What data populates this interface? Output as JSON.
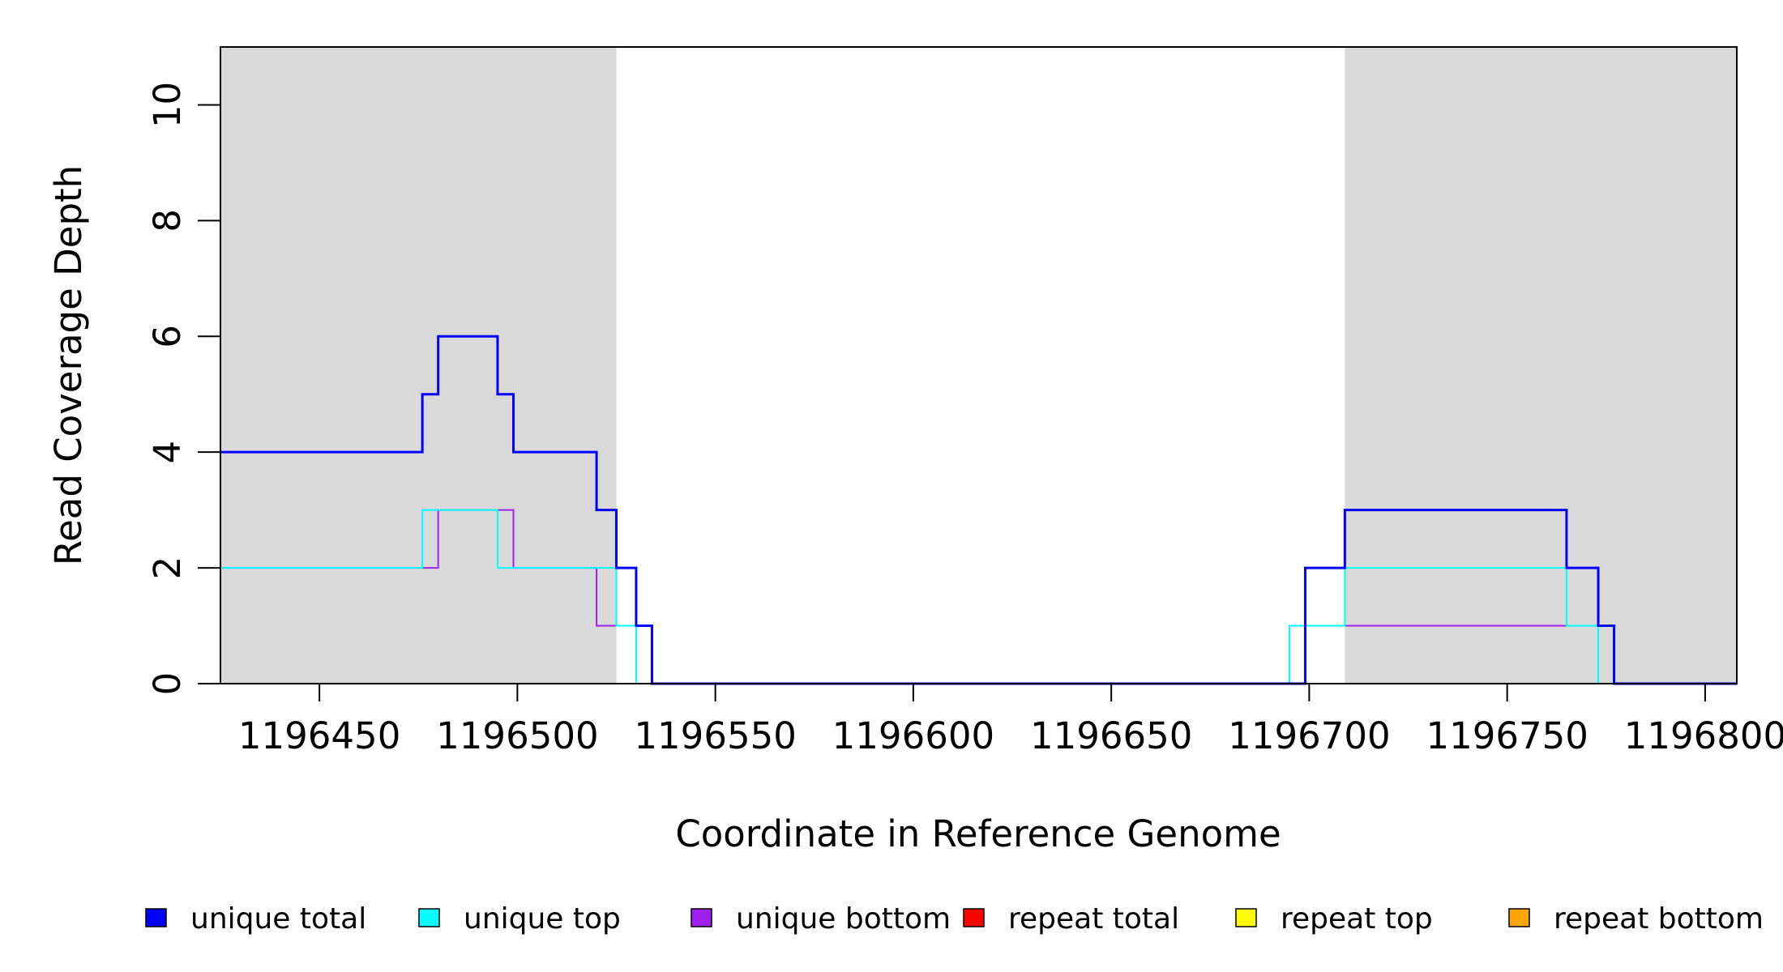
{
  "chart_data": {
    "type": "line",
    "step": true,
    "title": "",
    "xlabel": "Coordinate in Reference Genome",
    "ylabel": "Read Coverage Depth",
    "xlim": [
      1196425,
      1196808
    ],
    "ylim": [
      0,
      11
    ],
    "xticks": [
      1196450,
      1196500,
      1196550,
      1196600,
      1196650,
      1196700,
      1196750,
      1196800
    ],
    "xtick_labels": [
      "1196450",
      "1196500",
      "1196550",
      "1196600",
      "1196650",
      "1196700",
      "1196750",
      "1196800"
    ],
    "yticks": [
      0,
      2,
      4,
      6,
      8,
      10
    ],
    "ytick_labels": [
      "0",
      "2",
      "4",
      "6",
      "8",
      "10"
    ],
    "grid": false,
    "legend_position": "bottom",
    "shaded_regions": [
      {
        "x_start": 1196425,
        "x_end": 1196525,
        "color": "#d9d9d9"
      },
      {
        "x_start": 1196709,
        "x_end": 1196808,
        "color": "#d9d9d9"
      }
    ],
    "series": [
      {
        "name": "unique total",
        "color": "#0000ff",
        "points": [
          [
            1196425,
            4
          ],
          [
            1196476,
            4
          ],
          [
            1196476,
            5
          ],
          [
            1196480,
            5
          ],
          [
            1196480,
            6
          ],
          [
            1196495,
            6
          ],
          [
            1196495,
            5
          ],
          [
            1196499,
            5
          ],
          [
            1196499,
            4
          ],
          [
            1196520,
            4
          ],
          [
            1196520,
            3
          ],
          [
            1196525,
            3
          ],
          [
            1196525,
            2
          ],
          [
            1196530,
            2
          ],
          [
            1196530,
            1
          ],
          [
            1196534,
            1
          ],
          [
            1196534,
            0
          ],
          [
            1196699,
            0
          ],
          [
            1196699,
            2
          ],
          [
            1196709,
            2
          ],
          [
            1196709,
            3
          ],
          [
            1196765,
            3
          ],
          [
            1196765,
            2
          ],
          [
            1196773,
            2
          ],
          [
            1196773,
            1
          ],
          [
            1196777,
            1
          ],
          [
            1196777,
            0
          ],
          [
            1196808,
            0
          ]
        ]
      },
      {
        "name": "unique top",
        "color": "#00ffff",
        "points": [
          [
            1196425,
            2
          ],
          [
            1196476,
            2
          ],
          [
            1196476,
            3
          ],
          [
            1196495,
            3
          ],
          [
            1196495,
            2
          ],
          [
            1196525,
            2
          ],
          [
            1196525,
            1
          ],
          [
            1196530,
            1
          ],
          [
            1196530,
            0
          ],
          [
            1196695,
            0
          ],
          [
            1196695,
            1
          ],
          [
            1196709,
            1
          ],
          [
            1196709,
            2
          ],
          [
            1196765,
            2
          ],
          [
            1196765,
            1
          ],
          [
            1196773,
            1
          ],
          [
            1196773,
            0
          ],
          [
            1196808,
            0
          ]
        ]
      },
      {
        "name": "unique bottom",
        "color": "#a020f0",
        "points": [
          [
            1196425,
            2
          ],
          [
            1196480,
            2
          ],
          [
            1196480,
            3
          ],
          [
            1196499,
            3
          ],
          [
            1196499,
            2
          ],
          [
            1196520,
            2
          ],
          [
            1196520,
            1
          ],
          [
            1196534,
            1
          ],
          [
            1196534,
            0
          ],
          [
            1196699,
            0
          ],
          [
            1196699,
            1
          ],
          [
            1196777,
            1
          ],
          [
            1196777,
            0
          ],
          [
            1196808,
            0
          ]
        ]
      },
      {
        "name": "repeat total",
        "color": "#ff0000",
        "points": [
          [
            1196425,
            0
          ],
          [
            1196808,
            0
          ]
        ]
      },
      {
        "name": "repeat top",
        "color": "#ffff00",
        "points": [
          [
            1196425,
            0
          ],
          [
            1196808,
            0
          ]
        ]
      },
      {
        "name": "repeat bottom",
        "color": "#ffa500",
        "points": [
          [
            1196425,
            0
          ],
          [
            1196808,
            0
          ]
        ]
      }
    ]
  },
  "legend": [
    {
      "label": "unique total",
      "color": "#0000ff"
    },
    {
      "label": "unique top",
      "color": "#00ffff"
    },
    {
      "label": "unique bottom",
      "color": "#a020f0"
    },
    {
      "label": "repeat total",
      "color": "#ff0000"
    },
    {
      "label": "repeat top",
      "color": "#ffff00"
    },
    {
      "label": "repeat bottom",
      "color": "#ffa500"
    }
  ]
}
